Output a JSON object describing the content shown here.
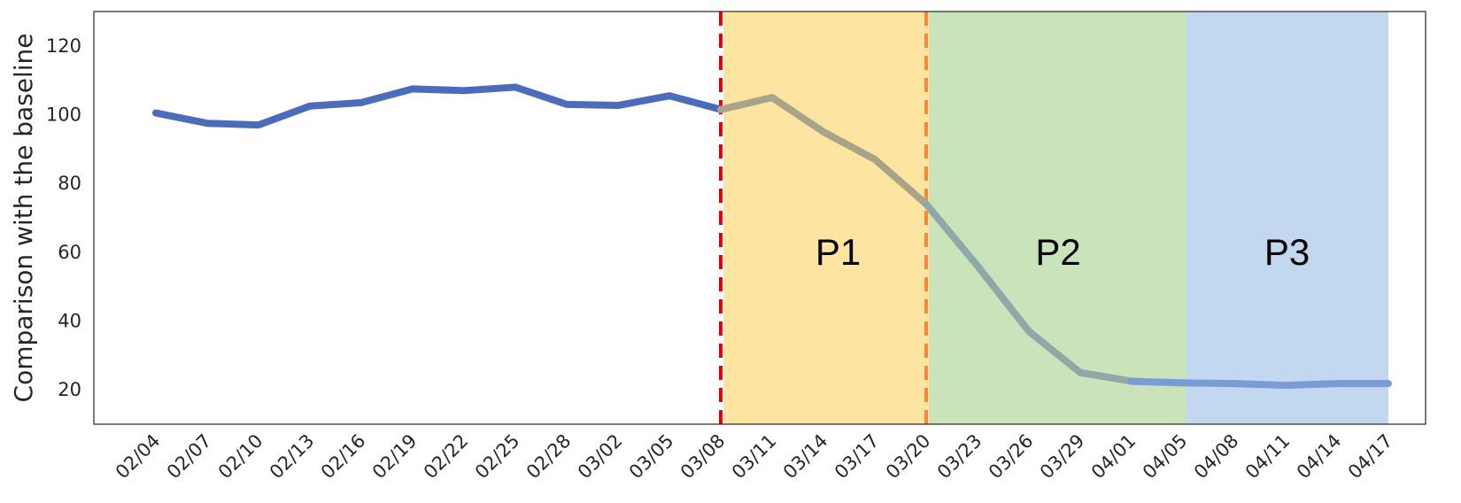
{
  "chart_data": {
    "type": "line",
    "title": "",
    "xlabel": "",
    "ylabel": "Comparison with the baseline",
    "ylim": [
      10,
      130
    ],
    "yticks": [
      20,
      40,
      60,
      80,
      100,
      120
    ],
    "grid": false,
    "legend": "none",
    "categories": [
      "02/04",
      "02/07",
      "02/10",
      "02/13",
      "02/16",
      "02/19",
      "02/22",
      "02/25",
      "02/28",
      "03/02",
      "03/05",
      "03/08",
      "03/11",
      "03/14",
      "03/17",
      "03/20",
      "03/23",
      "03/26",
      "03/29",
      "04/01",
      "04/05",
      "04/08",
      "04/11",
      "04/14",
      "04/17"
    ],
    "series": [
      {
        "color": "#4a6cba",
        "values": [
          100.5,
          97.5,
          97,
          102.5,
          103.5,
          107.5,
          107,
          108,
          103,
          102.7,
          105.5,
          101.5,
          105,
          95,
          87,
          74,
          56,
          37,
          25,
          22.5,
          22,
          21.8,
          21.3,
          21.8,
          21.8
        ],
        "segment_colors": [
          {
            "from": "02/04",
            "to": "03/08",
            "color": "#4a6cba"
          },
          {
            "from": "03/08",
            "to": "03/20",
            "color": "#a8a48a"
          },
          {
            "from": "03/20",
            "to": "04/01",
            "color": "#8fa8a8"
          },
          {
            "from": "04/01",
            "to": "04/17",
            "color": "#7a9ad8"
          }
        ]
      }
    ],
    "regions": [
      {
        "label": "P1",
        "from": "03/08",
        "to": "03/20",
        "color": "#fde5a1"
      },
      {
        "label": "P2",
        "from": "03/20",
        "to": "04/05",
        "color": "#cbe3bb"
      },
      {
        "label": "P3",
        "from": "04/05",
        "to": "04/17",
        "color": "#c2d8ee"
      }
    ],
    "vlines": [
      {
        "at": "03/08",
        "color": "#e00000",
        "style": "dashed"
      },
      {
        "at": "03/20",
        "color": "#f08a3c",
        "style": "dashed"
      }
    ]
  }
}
